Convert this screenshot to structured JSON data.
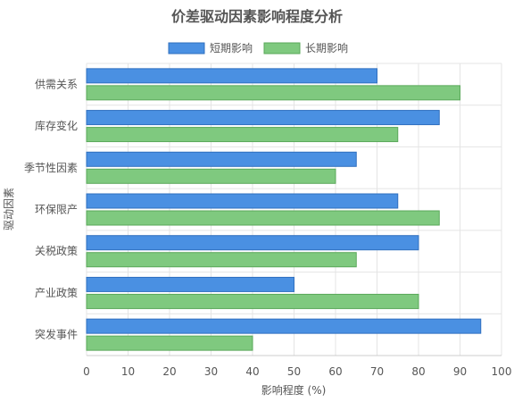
{
  "chart_data": {
    "type": "bar",
    "orientation": "horizontal",
    "title": "价差驱动因素影响程度分析",
    "xlabel": "影响程度 (%)",
    "ylabel": "驱动因素",
    "xlim": [
      0,
      100
    ],
    "xticks": [
      "0",
      "10",
      "20",
      "30",
      "40",
      "50",
      "60",
      "70",
      "80",
      "90",
      "100"
    ],
    "grid": true,
    "legend_position": "top",
    "categories": [
      "供需关系",
      "库存变化",
      "季节性因素",
      "环保限产",
      "关税政策",
      "产业政策",
      "突发事件"
    ],
    "series": [
      {
        "name": "短期影响",
        "color": "#4a90e2",
        "stroke": "#2f6fbf",
        "values": [
          70,
          85,
          65,
          75,
          80,
          50,
          95
        ]
      },
      {
        "name": "长期影响",
        "color": "#7fc97f",
        "stroke": "#5aa85a",
        "values": [
          90,
          75,
          60,
          85,
          65,
          80,
          40
        ]
      }
    ]
  }
}
